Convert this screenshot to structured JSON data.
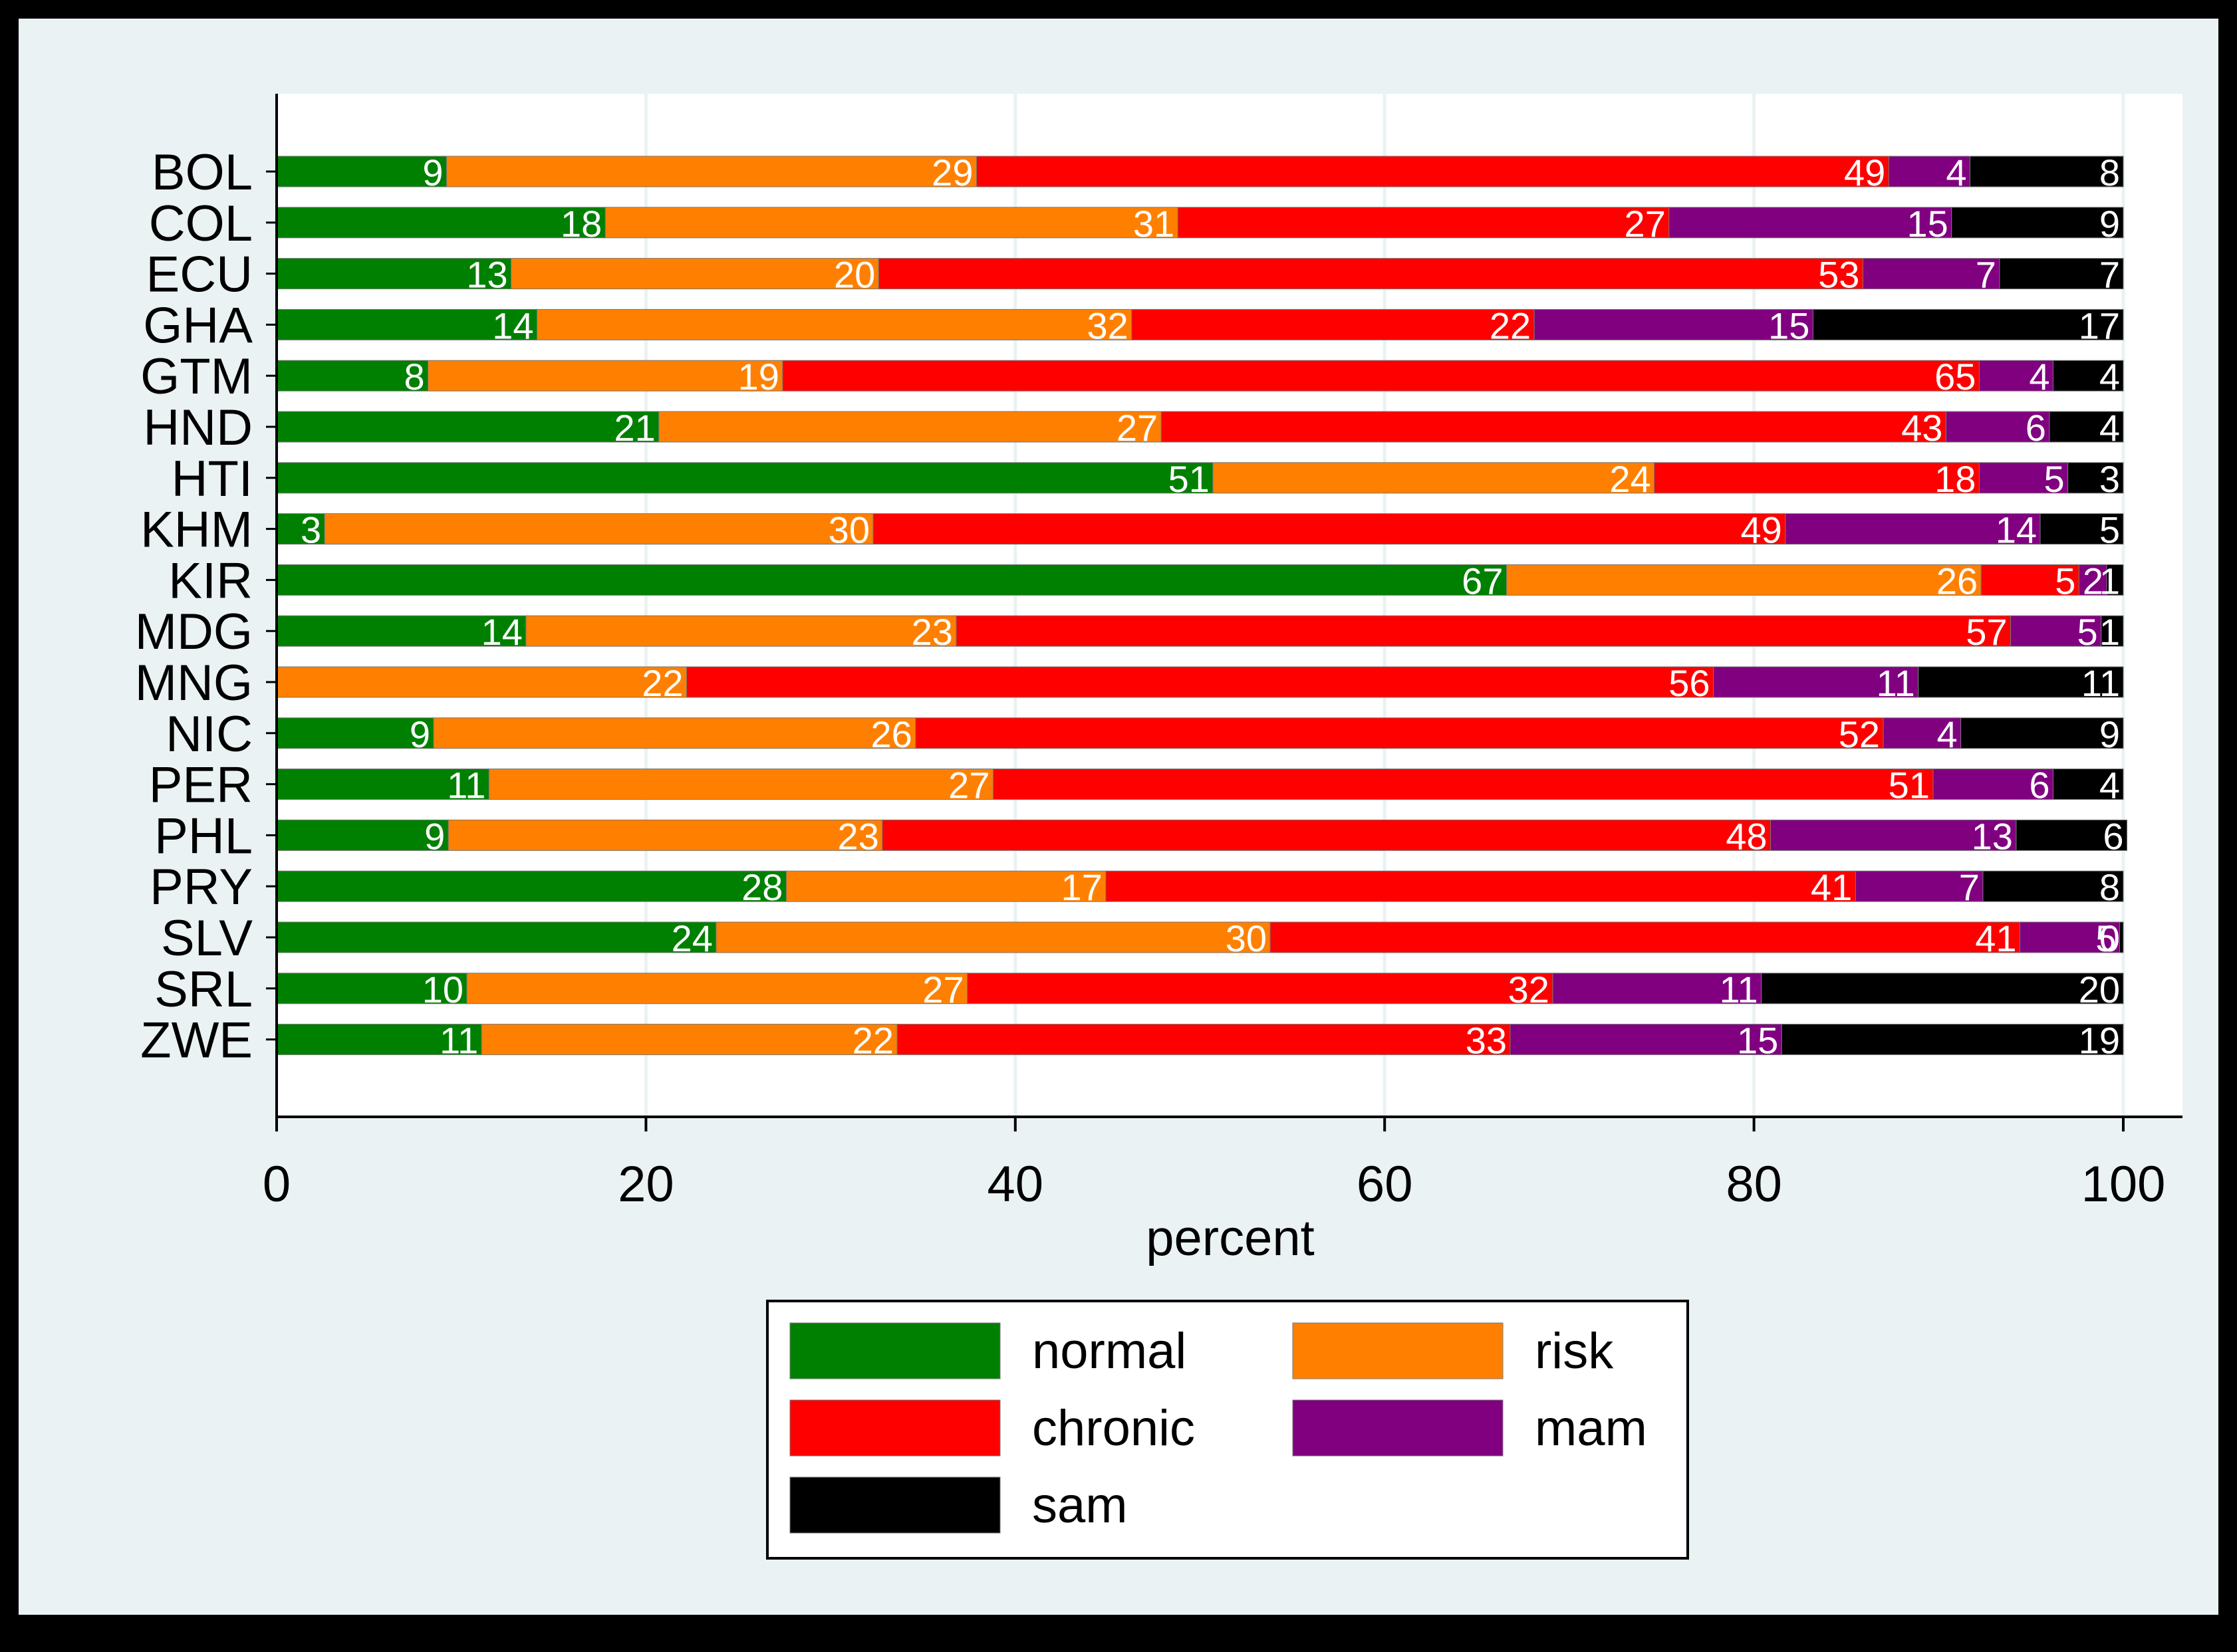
{
  "chart_data": {
    "type": "bar",
    "orientation": "horizontal",
    "stacked": true,
    "title": "",
    "xlabel": "percent",
    "ylabel": "",
    "xlim": [
      0,
      100
    ],
    "x_ticks": [
      0,
      20,
      40,
      60,
      80,
      100
    ],
    "grid": true,
    "legend_position": "bottom",
    "categories": [
      "BOL",
      "COL",
      "ECU",
      "GHA",
      "GTM",
      "HND",
      "HTI",
      "KHM",
      "KIR",
      "MDG",
      "MNG",
      "NIC",
      "PER",
      "PHL",
      "PRY",
      "SLV",
      "SRL",
      "ZWE"
    ],
    "series": [
      {
        "name": "normal",
        "color": "#008000",
        "values": [
          9.2,
          17.8,
          12.7,
          14.1,
          8.2,
          20.7,
          50.7,
          2.6,
          66.6,
          13.5,
          0.0,
          8.5,
          11.5,
          9.3,
          27.6,
          23.8,
          10.3,
          11.1
        ],
        "labels": [
          "9",
          "18",
          "13",
          "14",
          "8",
          "21",
          "51",
          "3",
          "67",
          "14",
          "",
          "9",
          "11",
          "9",
          "28",
          "24",
          "10",
          "11"
        ]
      },
      {
        "name": "risk",
        "color": "#ff8000",
        "values": [
          28.7,
          31.0,
          19.9,
          32.2,
          19.2,
          27.2,
          23.9,
          29.7,
          25.7,
          23.3,
          22.2,
          26.1,
          27.3,
          23.5,
          17.3,
          30.0,
          27.1,
          22.5
        ],
        "labels": [
          "29",
          "31",
          "20",
          "32",
          "19",
          "27",
          "24",
          "30",
          "26",
          "23",
          "22",
          "26",
          "27",
          "23",
          "17",
          "30",
          "27",
          "22"
        ]
      },
      {
        "name": "chronic",
        "color": "#ff0000",
        "values": [
          49.4,
          26.6,
          53.3,
          21.8,
          64.8,
          42.5,
          17.6,
          49.4,
          5.3,
          57.1,
          55.6,
          52.4,
          50.9,
          48.1,
          40.6,
          40.6,
          31.7,
          33.2
        ],
        "labels": [
          "49",
          "27",
          "53",
          "22",
          "65",
          "43",
          "18",
          "49",
          "5",
          "57",
          "56",
          "52",
          "51",
          "48",
          "41",
          "41",
          "32",
          "33"
        ]
      },
      {
        "name": "mam",
        "color": "#800080",
        "values": [
          4.4,
          15.3,
          7.4,
          15.1,
          4.0,
          5.6,
          4.8,
          13.8,
          1.5,
          4.9,
          11.1,
          4.2,
          6.5,
          13.3,
          6.9,
          5.4,
          11.3,
          14.7
        ],
        "labels": [
          "4",
          "15",
          "7",
          "15",
          "4",
          "6",
          "5",
          "14",
          "2",
          "5",
          "11",
          "4",
          "6",
          "13",
          "7",
          "5",
          "11",
          "15"
        ]
      },
      {
        "name": "sam",
        "color": "#000000",
        "values": [
          8.3,
          9.3,
          6.7,
          16.8,
          3.8,
          4.0,
          3.0,
          4.5,
          0.9,
          1.2,
          11.1,
          8.8,
          3.8,
          6.0,
          7.6,
          0.2,
          19.6,
          18.5
        ],
        "labels": [
          "8",
          "9",
          "7",
          "17",
          "4",
          "4",
          "3",
          "5",
          "1",
          "1",
          "11",
          "9",
          "4",
          "6",
          "8",
          "0",
          "20",
          "19"
        ]
      }
    ]
  }
}
